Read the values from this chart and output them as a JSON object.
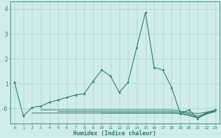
{
  "x": [
    0,
    1,
    2,
    3,
    4,
    5,
    6,
    7,
    8,
    9,
    10,
    11,
    12,
    13,
    14,
    15,
    16,
    17,
    18,
    19,
    20,
    21,
    22,
    23
  ],
  "main_line": [
    1.05,
    -0.3,
    0.05,
    0.1,
    0.25,
    0.35,
    0.45,
    0.55,
    0.6,
    1.1,
    1.55,
    1.3,
    0.65,
    1.05,
    2.45,
    3.85,
    1.65,
    1.55,
    0.85,
    -0.2,
    -0.05,
    -0.4,
    -0.15,
    -0.05
  ],
  "flat1": [
    null,
    null,
    null,
    -0.05,
    -0.05,
    -0.05,
    -0.05,
    -0.05,
    -0.05,
    -0.05,
    -0.05,
    -0.05,
    -0.05,
    -0.05,
    -0.05,
    -0.05,
    -0.05,
    -0.05,
    -0.05,
    -0.1,
    -0.15,
    -0.2,
    -0.15,
    -0.1
  ],
  "flat2": [
    null,
    null,
    null,
    null,
    null,
    -0.12,
    -0.12,
    -0.12,
    -0.12,
    -0.12,
    -0.12,
    -0.12,
    -0.12,
    -0.12,
    -0.12,
    -0.12,
    -0.12,
    -0.12,
    -0.12,
    -0.15,
    -0.2,
    -0.3,
    -0.2,
    -0.12
  ],
  "flat3": [
    null,
    null,
    null,
    null,
    null,
    null,
    null,
    null,
    null,
    null,
    -0.18,
    -0.18,
    -0.18,
    -0.18,
    -0.18,
    -0.18,
    -0.18,
    -0.18,
    -0.18,
    -0.2,
    -0.28,
    -0.38,
    -0.22,
    -0.12
  ],
  "flat4": [
    null,
    null,
    -0.18,
    -0.18,
    -0.18,
    -0.18,
    -0.18,
    -0.18,
    -0.18,
    -0.18,
    -0.18,
    -0.18,
    -0.18,
    -0.18,
    -0.18,
    -0.18,
    -0.18,
    -0.18,
    -0.18,
    -0.2,
    -0.25,
    -0.35,
    -0.2,
    -0.12
  ],
  "color": "#2e7d6e",
  "bg_color": "#ceecea",
  "grid_color": "#aacfcc",
  "xlabel": "Humidex (Indice chaleur)",
  "ylim": [
    -0.6,
    4.3
  ],
  "xlim": [
    -0.5,
    23.5
  ],
  "yticks": [
    0,
    1,
    2,
    3,
    4
  ],
  "ytick_labels": [
    "-0",
    "1",
    "2",
    "3",
    "4"
  ],
  "xtick_labels": [
    "0",
    "1",
    "2",
    "3",
    "4",
    "5",
    "6",
    "7",
    "8",
    "9",
    "10",
    "11",
    "12",
    "13",
    "14",
    "15",
    "16",
    "17",
    "18",
    "19",
    "20",
    "21",
    "22",
    "23"
  ],
  "figsize": [
    3.2,
    2.0
  ],
  "dpi": 100
}
